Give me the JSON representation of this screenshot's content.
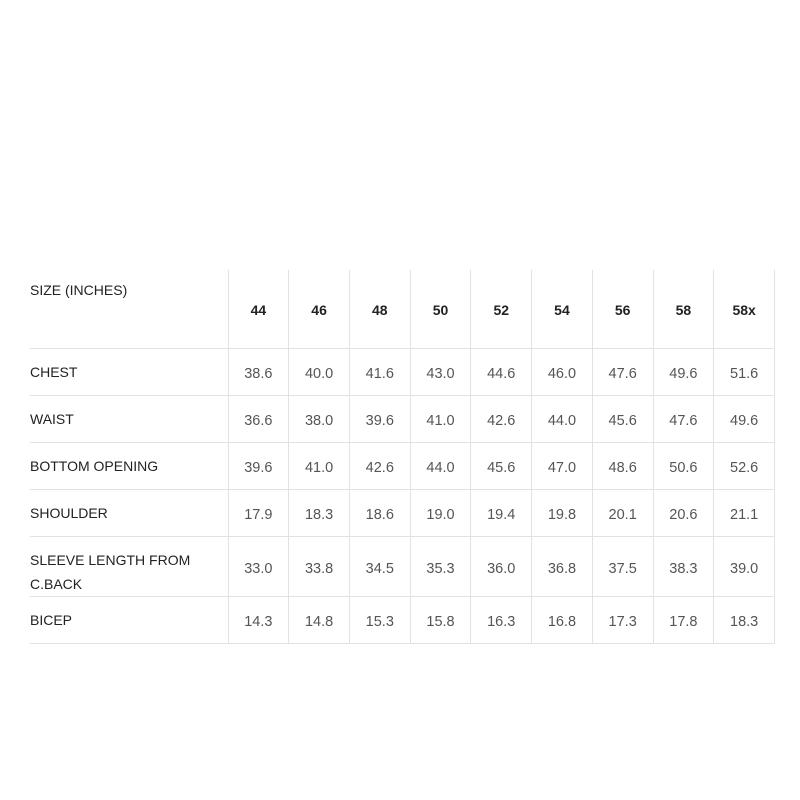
{
  "table": {
    "header_label": "SIZE (INCHES)",
    "sizes": [
      "44",
      "46",
      "48",
      "50",
      "52",
      "54",
      "56",
      "58",
      "58x"
    ],
    "rows": [
      {
        "label": "CHEST",
        "values": [
          "38.6",
          "40.0",
          "41.6",
          "43.0",
          "44.6",
          "46.0",
          "47.6",
          "49.6",
          "51.6"
        ]
      },
      {
        "label": "WAIST",
        "values": [
          "36.6",
          "38.0",
          "39.6",
          "41.0",
          "42.6",
          "44.0",
          "45.6",
          "47.6",
          "49.6"
        ]
      },
      {
        "label": "BOTTOM OPENING",
        "values": [
          "39.6",
          "41.0",
          "42.6",
          "44.0",
          "45.6",
          "47.0",
          "48.6",
          "50.6",
          "52.6"
        ]
      },
      {
        "label": "SHOULDER",
        "values": [
          "17.9",
          "18.3",
          "18.6",
          "19.0",
          "19.4",
          "19.8",
          "20.1",
          "20.6",
          "21.1"
        ]
      },
      {
        "label": "SLEEVE LENGTH FROM C.BACK",
        "values": [
          "33.0",
          "33.8",
          "34.5",
          "35.3",
          "36.0",
          "36.8",
          "37.5",
          "38.3",
          "39.0"
        ]
      },
      {
        "label": "BICEP",
        "values": [
          "14.3",
          "14.8",
          "15.3",
          "15.8",
          "16.3",
          "16.8",
          "17.3",
          "17.8",
          "18.3"
        ]
      }
    ]
  }
}
